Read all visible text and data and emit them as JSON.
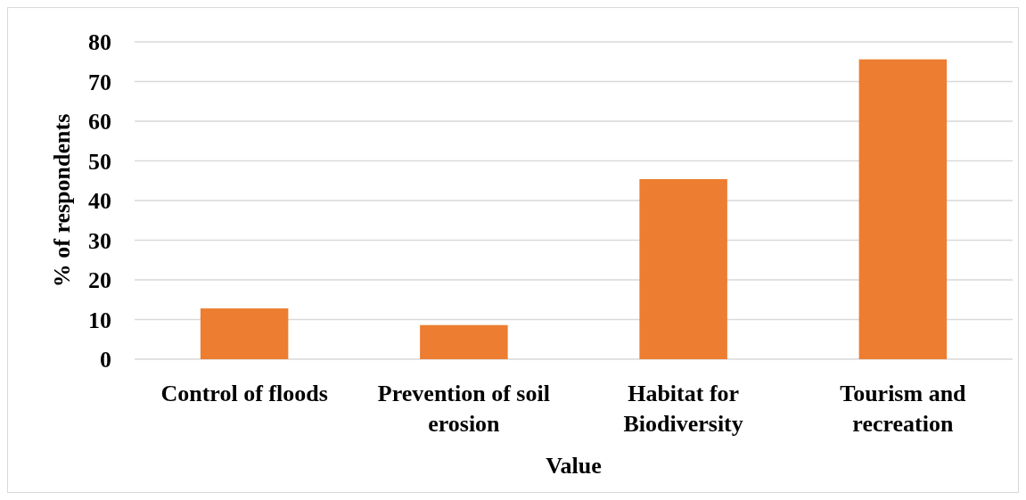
{
  "chart_data": {
    "type": "bar",
    "xlabel": "Value",
    "ylabel": "% of respondents",
    "categories": [
      "Control of floods",
      "Prevention of soil erosion",
      "Habitat for Biodiversity",
      "Tourism and recreation"
    ],
    "values": [
      12.8,
      8.6,
      45.4,
      75.6
    ],
    "color": "#ed7d31",
    "ylim": [
      0,
      80
    ],
    "yticks": [
      0,
      10,
      20,
      30,
      40,
      50,
      60,
      70,
      80
    ],
    "grid": "y"
  }
}
